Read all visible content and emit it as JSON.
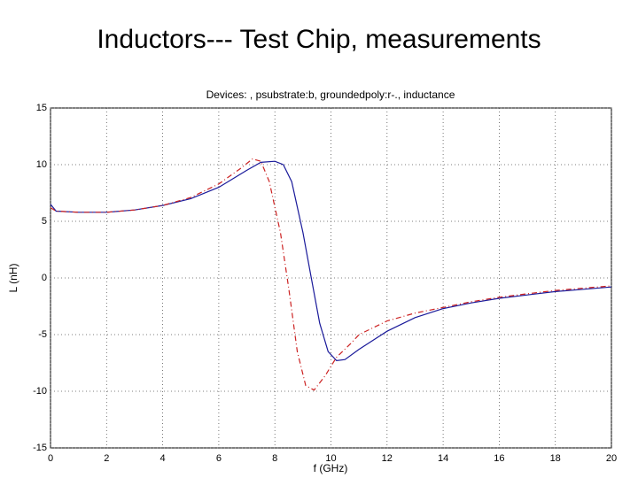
{
  "slide_title": "Inductors--- Test Chip, measurements",
  "chart_data": {
    "type": "line",
    "title": "Devices: , psubstrate:b, groundedpoly:r-., inductance",
    "xlabel": "f (GHz)",
    "ylabel": "L (nH)",
    "xlim": [
      0,
      20
    ],
    "ylim": [
      -15,
      15
    ],
    "xticks": [
      0,
      2,
      4,
      6,
      8,
      10,
      12,
      14,
      16,
      18,
      20
    ],
    "yticks": [
      -15,
      -10,
      -5,
      0,
      5,
      10,
      15
    ],
    "grid": true,
    "series": [
      {
        "color": "#1a1a9a",
        "dash": "solid",
        "x": [
          0,
          0.2,
          1,
          2,
          3,
          4,
          5,
          6,
          7,
          7.5,
          8,
          8.3,
          8.6,
          9,
          9.3,
          9.6,
          9.9,
          10.2,
          10.5,
          11,
          12,
          13,
          14,
          15,
          16,
          17,
          18,
          19,
          20
        ],
        "values": [
          6.5,
          5.9,
          5.8,
          5.8,
          6.0,
          6.4,
          7.0,
          8.0,
          9.5,
          10.2,
          10.3,
          10.0,
          8.5,
          4,
          0,
          -4,
          -6.5,
          -7.3,
          -7.2,
          -6.3,
          -4.7,
          -3.5,
          -2.7,
          -2.2,
          -1.8,
          -1.5,
          -1.2,
          -1.0,
          -0.8
        ]
      },
      {
        "color": "#cc2222",
        "dash": "dashdot",
        "x": [
          0,
          0.2,
          1,
          2,
          3,
          4,
          5,
          6,
          6.8,
          7.2,
          7.5,
          7.8,
          8.2,
          8.5,
          8.8,
          9.1,
          9.4,
          9.8,
          10.2,
          10.7,
          11,
          12,
          13,
          14,
          15,
          16,
          17,
          18,
          19,
          20
        ],
        "values": [
          6.2,
          5.9,
          5.8,
          5.8,
          6.0,
          6.4,
          7.1,
          8.3,
          9.7,
          10.5,
          10.3,
          8.5,
          4,
          -1,
          -6.5,
          -9.5,
          -9.9,
          -8.6,
          -7,
          -5.8,
          -5.0,
          -3.8,
          -3.1,
          -2.6,
          -2.1,
          -1.7,
          -1.4,
          -1.1,
          -0.9,
          -0.7
        ]
      }
    ]
  }
}
